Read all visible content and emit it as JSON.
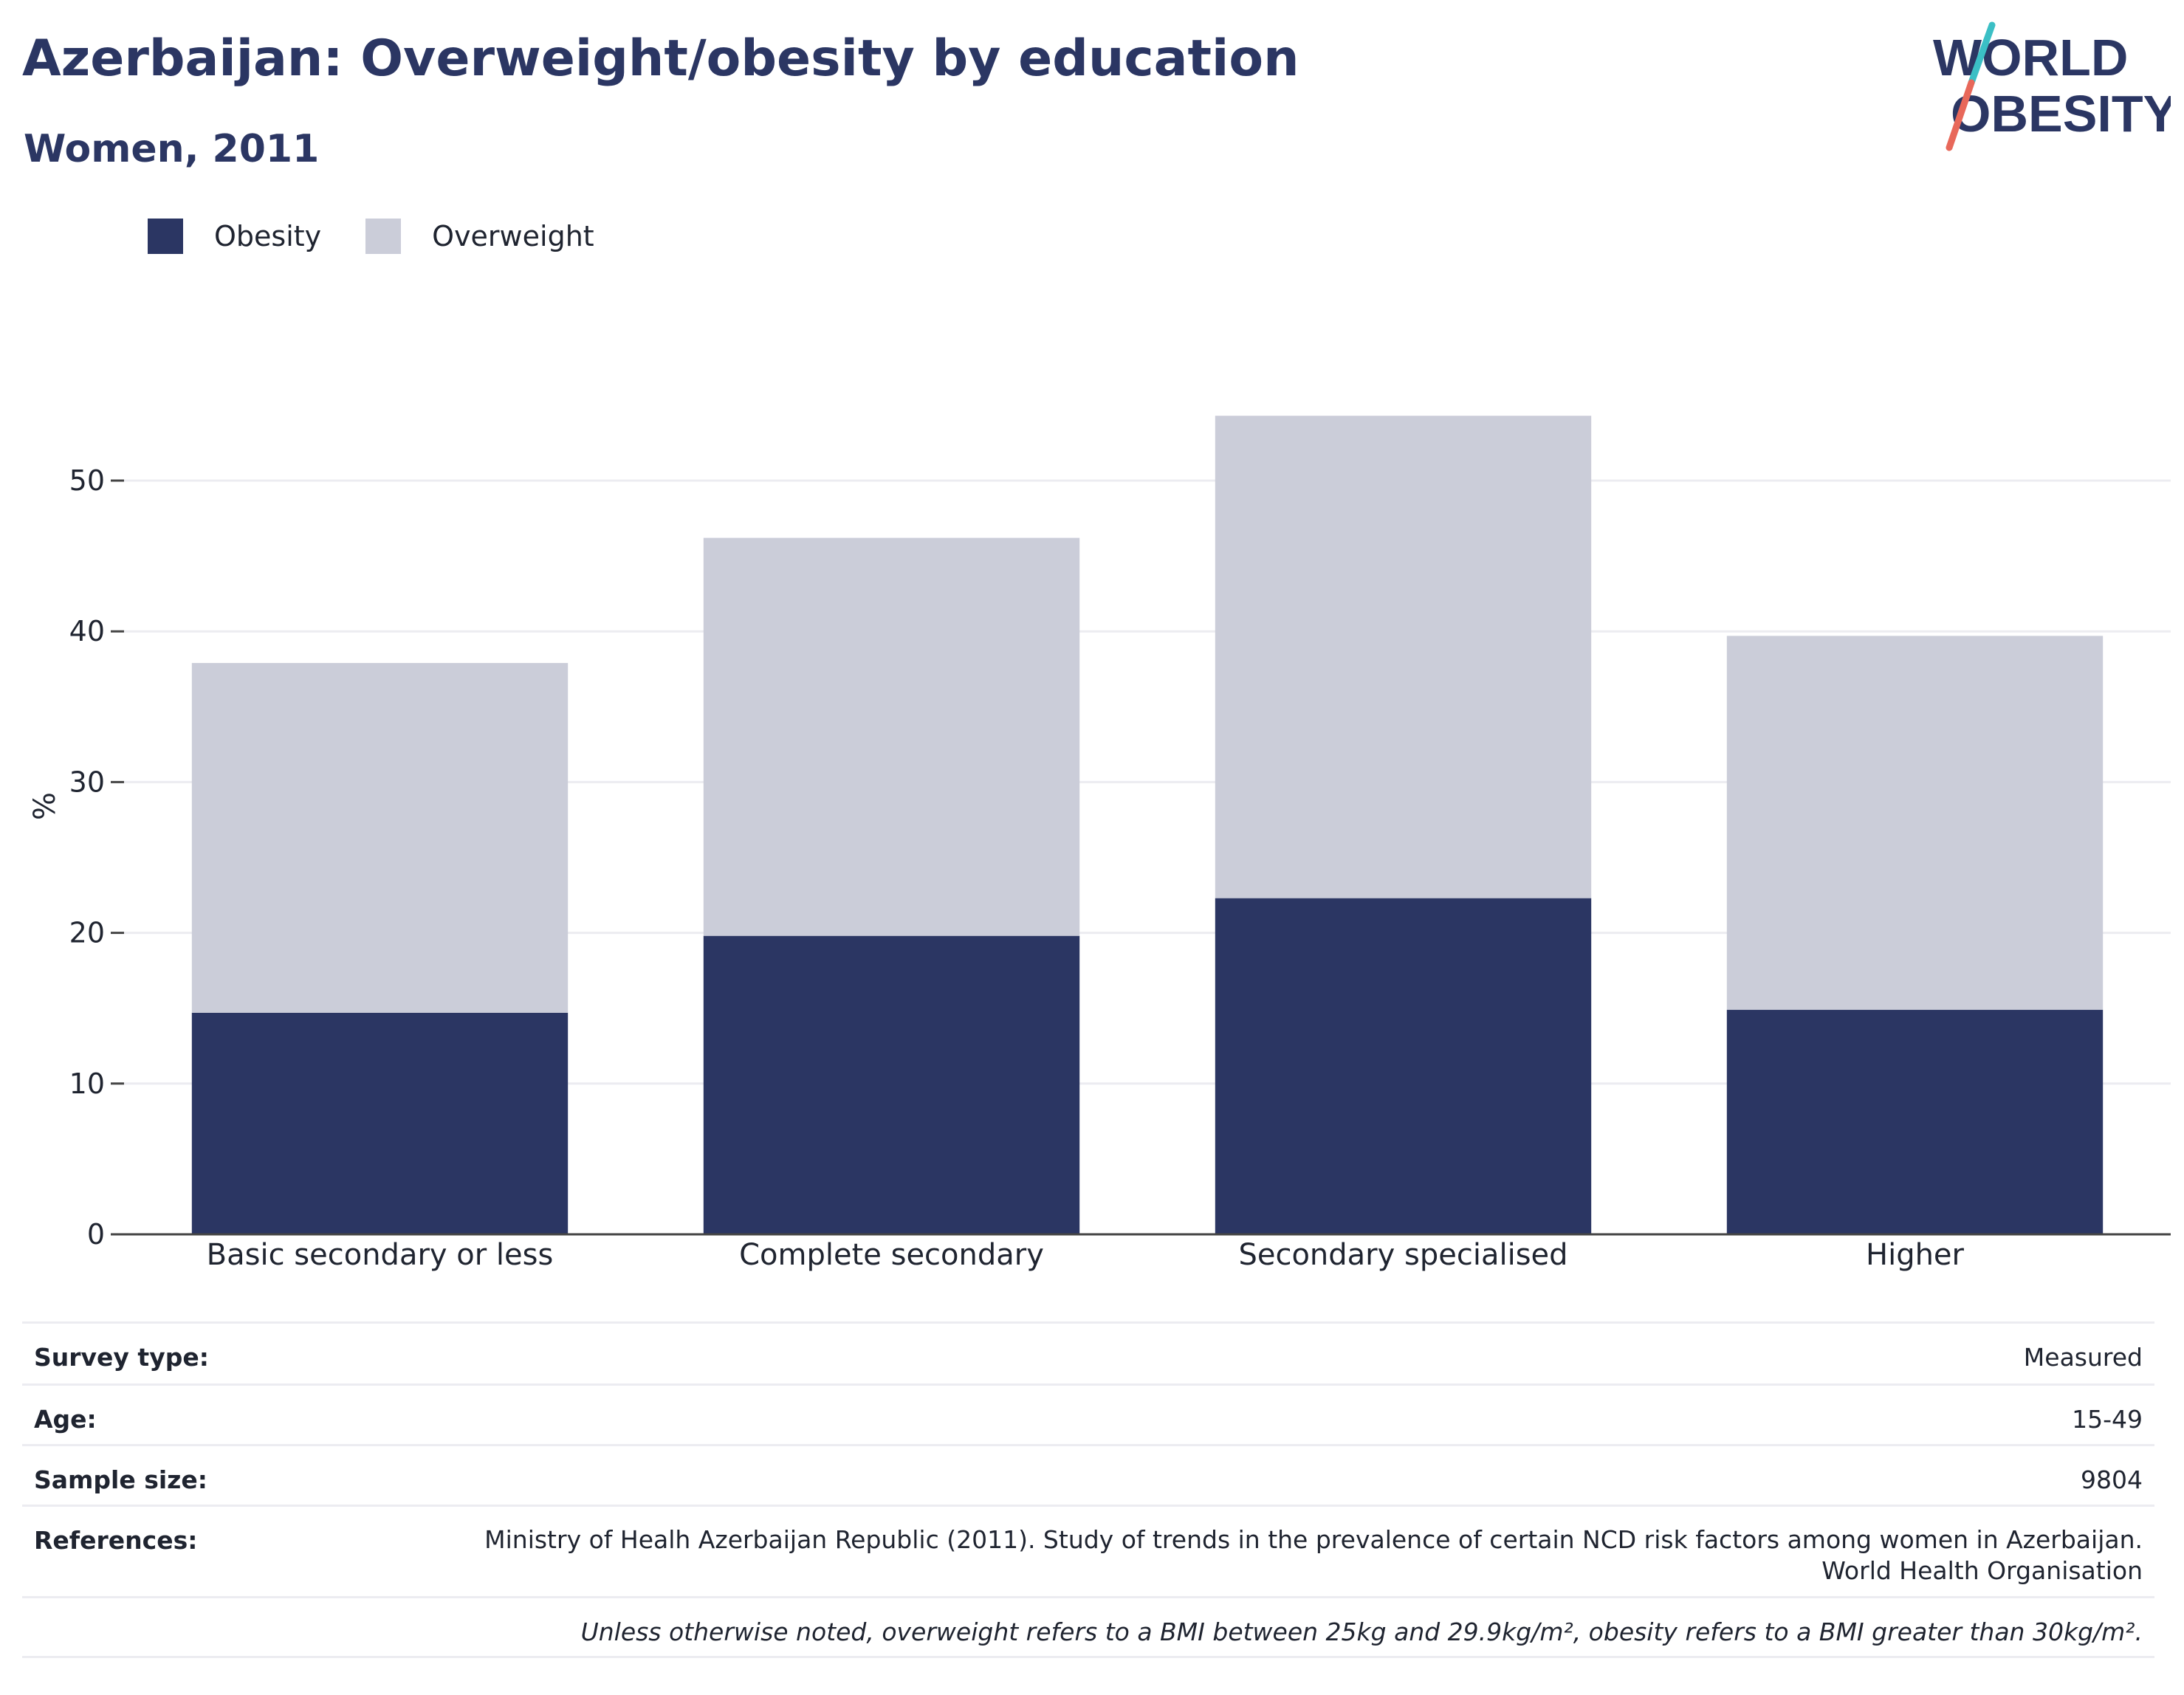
{
  "header": {
    "title": "Azerbaijan: Overweight/obesity by education",
    "subtitle": "Women, 2011"
  },
  "logo": {
    "line1": "WORLD",
    "line2": "OBESITY",
    "colors": {
      "text": "#2b3663",
      "slash_top": "#3bbfc5",
      "slash_bottom": "#e8685a"
    }
  },
  "legend": [
    {
      "name": "Obesity",
      "color": "#2b3663"
    },
    {
      "name": "Overweight",
      "color": "#cbcdd9"
    }
  ],
  "chart_data": {
    "type": "bar",
    "stacked": true,
    "categories": [
      "Basic secondary or less",
      "Complete secondary",
      "Secondary specialised",
      "Higher"
    ],
    "series": [
      {
        "name": "Obesity",
        "color": "#2b3663",
        "values": [
          14.7,
          19.8,
          22.3,
          14.9
        ]
      },
      {
        "name": "Overweight",
        "color": "#cbcdd9",
        "values": [
          23.2,
          26.4,
          32.0,
          24.8
        ]
      }
    ],
    "ylabel": "%",
    "yticks": [
      0,
      10,
      20,
      30,
      40,
      50
    ],
    "ylim": [
      0,
      58
    ],
    "grid": true,
    "legend_position": "top-left"
  },
  "info": {
    "survey_type": {
      "label": "Survey type:",
      "value": "Measured"
    },
    "age": {
      "label": "Age:",
      "value": "15-49"
    },
    "sample_size": {
      "label": "Sample size:",
      "value": "9804"
    },
    "references": {
      "label": "References:",
      "line1": "Ministry of Healh Azerbaijan Republic (2011). Study of trends in the prevalence of certain NCD risk factors among women in Azerbaijan.",
      "line2": "World Health Organisation"
    },
    "note": "Unless otherwise noted, overweight refers to a BMI between 25kg and 29.9kg/m², obesity refers to a BMI greater than 30kg/m²."
  }
}
